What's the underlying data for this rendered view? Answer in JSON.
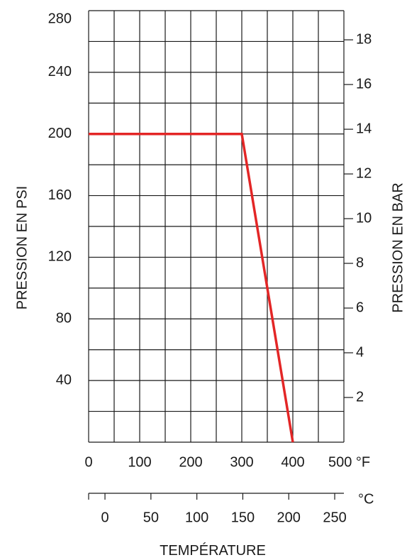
{
  "chart_data": {
    "type": "line",
    "title": "",
    "xlabel": "TEMPÉRATURE",
    "ylabel_left": "PRESSION EN PSI",
    "ylabel_right": "PRESSION EN BAR",
    "x_unit_f": "°F",
    "x_unit_c": "°C",
    "xlim_f": [
      0,
      500
    ],
    "ylim_psi": [
      0,
      280
    ],
    "xticks_f": [
      0,
      100,
      200,
      300,
      400,
      500
    ],
    "xtick_labels_f": [
      "0",
      "100",
      "200",
      "300",
      "400",
      "500 °F"
    ],
    "xticks_c": [
      0,
      50,
      100,
      150,
      200,
      250
    ],
    "xtick_labels_c": [
      "0",
      "50",
      "100",
      "150",
      "200",
      "250"
    ],
    "yticks_psi": [
      40,
      80,
      120,
      160,
      200,
      240,
      280
    ],
    "ytick_labels_psi": [
      "40",
      "80",
      "120",
      "160",
      "200",
      "240",
      "280"
    ],
    "yticks_bar": [
      2,
      4,
      6,
      8,
      10,
      12,
      14,
      16,
      18
    ],
    "ytick_labels_bar": [
      "2",
      "4",
      "6",
      "8",
      "10",
      "12",
      "14",
      "16",
      "18"
    ],
    "grid": true,
    "series": [
      {
        "x": [
          0,
          300,
          400
        ],
        "y": [
          200,
          200,
          0
        ],
        "color": "#e32626"
      }
    ],
    "colors": {
      "grid": "#1a1a1a",
      "line": "#e32626",
      "text": "#1a1a1a"
    }
  }
}
